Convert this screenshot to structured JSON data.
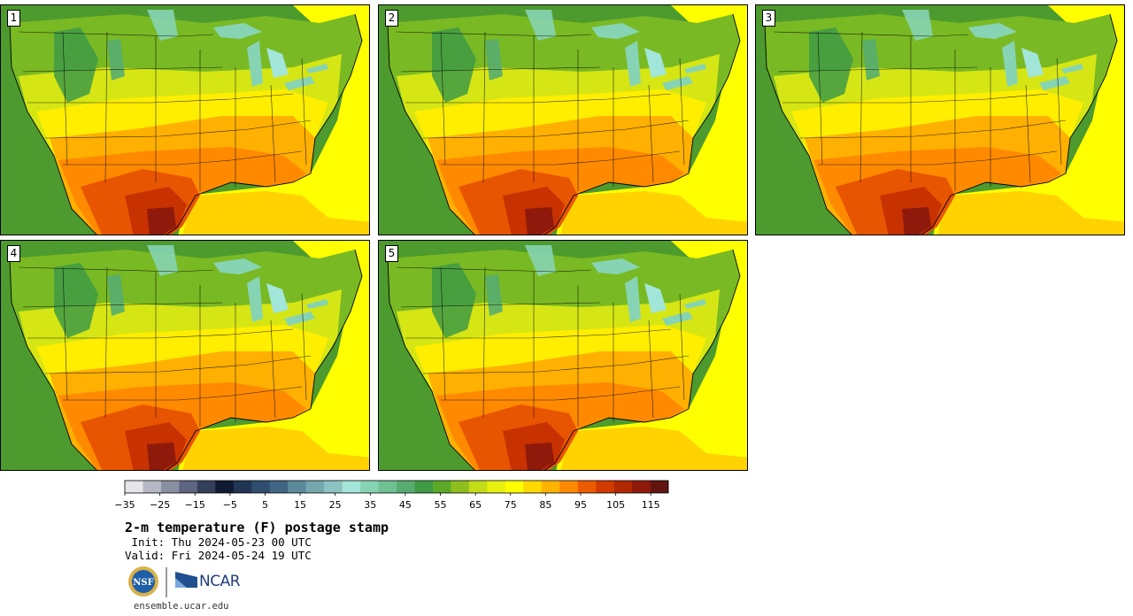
{
  "panels": [
    {
      "label": "1"
    },
    {
      "label": "2"
    },
    {
      "label": "3"
    },
    {
      "label": "4"
    },
    {
      "label": "5"
    }
  ],
  "colorbar": {
    "min": -35,
    "max": 120,
    "step": 5,
    "colors": [
      "#e6e6ea",
      "#b6b9c3",
      "#8a90a1",
      "#5d6580",
      "#343f5c",
      "#0f1b30",
      "#203654",
      "#2f4d6e",
      "#3f6684",
      "#5b8a9b",
      "#75a7ae",
      "#8cc3c3",
      "#a2e5d9",
      "#86d4b3",
      "#6fc092",
      "#57ad6f",
      "#3f9a45",
      "#5aaa28",
      "#8fbf1e",
      "#c2dc17",
      "#e8f00f",
      "#ffff00",
      "#ffd900",
      "#ffb300",
      "#ff8a00",
      "#ec5b00",
      "#d23a00",
      "#b22800",
      "#8f1a0c",
      "#62150f"
    ],
    "tick_labels": [
      "−35",
      "−25",
      "−15",
      "−5",
      "5",
      "15",
      "25",
      "35",
      "45",
      "55",
      "65",
      "75",
      "85",
      "95",
      "105",
      "115"
    ],
    "tick_values": [
      -35,
      -25,
      -15,
      -5,
      5,
      15,
      25,
      35,
      45,
      55,
      65,
      75,
      85,
      95,
      105,
      115
    ]
  },
  "title": "2-m temperature (F) postage stamp",
  "init": " Init: Thu 2024-05-23 00 UTC",
  "valid": "Valid: Fri 2024-05-24 19 UTC",
  "logos": {
    "nsf": "NSF",
    "ncar": "NCAR"
  },
  "url": "ensemble.ucar.edu"
}
